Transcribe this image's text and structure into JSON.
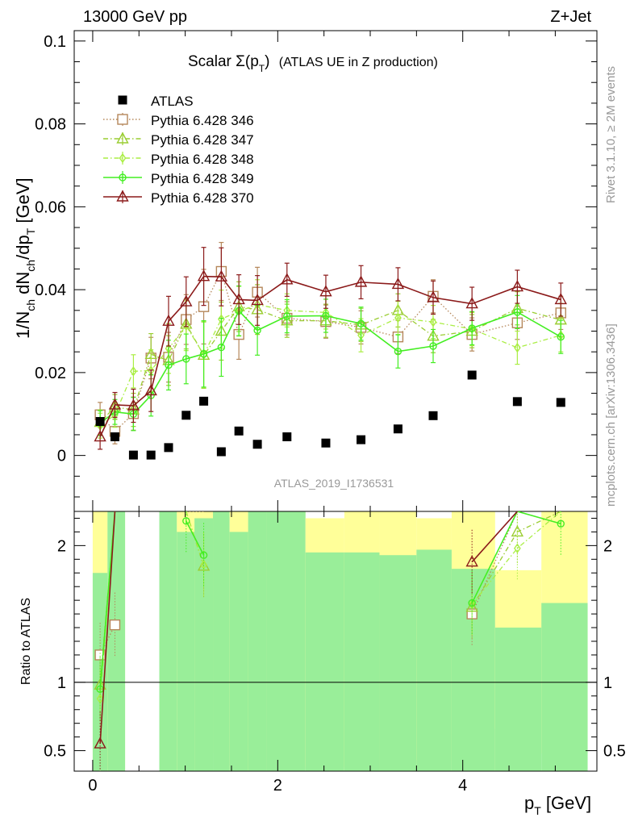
{
  "header": {
    "left": "13000 GeV pp",
    "right": "Z+Jet"
  },
  "side_labels": {
    "top": "Rivet 3.1.10, ≥ 2M events",
    "bottom": "mcplots.cern.ch [arXiv:1306.3436]"
  },
  "analysis_label": "ATLAS_2019_I1736531",
  "title": {
    "main": "Scalar Σ(p",
    "sub": "T",
    "close": ")",
    "suffix": "(ATLAS UE in Z production)"
  },
  "colors": {
    "data": "#000000",
    "p346": "#b5875a",
    "p347": "#9acd32",
    "p348": "#aaee44",
    "p349": "#44ee22",
    "p370": "#8b1a1a",
    "band_inner": "#99ee99",
    "band_outer": "#ffff99"
  },
  "chart_data": [
    {
      "type": "scatter",
      "panel": "main",
      "xlim": [
        -0.2,
        5.45
      ],
      "ylim": [
        -0.0135,
        0.1025
      ],
      "ylabel": "1/N_ch dN_ch/dp_T [GeV]",
      "y_ticks": [
        0,
        0.02,
        0.04,
        0.06,
        0.08,
        0.1
      ],
      "y_tick_labels": [
        "0",
        "0.02",
        "0.04",
        "0.06",
        "0.08",
        "0.1"
      ],
      "legend_position": "top-left",
      "series": [
        {
          "name": "ATLAS",
          "key": "data",
          "marker": "square-filled",
          "x": [
            0.08,
            0.24,
            0.44,
            0.63,
            0.82,
            1.01,
            1.2,
            1.39,
            1.58,
            1.78,
            2.1,
            2.52,
            2.9,
            3.3,
            3.68,
            4.1,
            4.59,
            5.06
          ],
          "y": [
            0.0082,
            0.0045,
            0.0001,
            0.0001,
            0.0019,
            0.0097,
            0.0131,
            0.0009,
            0.0059,
            0.0027,
            0.0045,
            0.003,
            0.0038,
            0.0064,
            0.0096,
            0.0194,
            0.013,
            0.0128
          ]
        },
        {
          "name": "Pythia 6.428 346",
          "key": "p346",
          "marker": "square-open",
          "line": "dotted",
          "x": [
            0.08,
            0.24,
            0.44,
            0.63,
            0.82,
            1.01,
            1.2,
            1.39,
            1.58,
            1.78,
            2.1,
            2.52,
            2.9,
            3.3,
            3.68,
            4.1,
            4.59,
            5.06
          ],
          "y": [
            0.0098,
            0.0058,
            0.0101,
            0.0235,
            0.0237,
            0.0328,
            0.0359,
            0.0444,
            0.0292,
            0.0394,
            0.0331,
            0.0323,
            0.0309,
            0.0286,
            0.0384,
            0.0292,
            0.032,
            0.0344
          ],
          "err": [
            0.003,
            0.003,
            0.004,
            0.005,
            0.006,
            0.006,
            0.009,
            0.007,
            0.006,
            0.006,
            0.004,
            0.004,
            0.004,
            0.004,
            0.004,
            0.004,
            0.004,
            0.004
          ]
        },
        {
          "name": "Pythia 6.428 347",
          "key": "p347",
          "marker": "triangle-open",
          "line": "dashdot",
          "x": [
            0.08,
            0.24,
            0.44,
            0.63,
            0.82,
            1.01,
            1.2,
            1.39,
            1.58,
            1.78,
            2.1,
            2.52,
            2.9,
            3.3,
            3.68,
            4.1,
            4.59,
            5.06
          ],
          "y": [
            0.008,
            0.0117,
            0.011,
            0.0244,
            0.0229,
            0.0317,
            0.0242,
            0.03,
            0.0359,
            0.0352,
            0.0325,
            0.0325,
            0.0315,
            0.035,
            0.0288,
            0.03,
            0.0355,
            0.0327
          ],
          "err": [
            0.003,
            0.003,
            0.004,
            0.005,
            0.006,
            0.006,
            0.008,
            0.007,
            0.006,
            0.006,
            0.004,
            0.004,
            0.004,
            0.004,
            0.004,
            0.004,
            0.004,
            0.004
          ]
        },
        {
          "name": "Pythia 6.428 348",
          "key": "p348",
          "marker": "diamond-open",
          "line": "dashdot",
          "x": [
            0.08,
            0.24,
            0.44,
            0.63,
            0.82,
            1.01,
            1.2,
            1.39,
            1.58,
            1.78,
            2.1,
            2.52,
            2.9,
            3.3,
            3.68,
            4.1,
            4.59,
            5.06
          ],
          "y": [
            0.0072,
            0.0098,
            0.0203,
            0.0205,
            0.0258,
            0.0313,
            0.0243,
            0.0329,
            0.0348,
            0.0364,
            0.035,
            0.0345,
            0.029,
            0.0332,
            0.0322,
            0.0305,
            0.026,
            0.029
          ],
          "err": [
            0.003,
            0.003,
            0.004,
            0.005,
            0.006,
            0.006,
            0.008,
            0.007,
            0.006,
            0.006,
            0.004,
            0.004,
            0.004,
            0.004,
            0.004,
            0.004,
            0.004,
            0.004
          ]
        },
        {
          "name": "Pythia 6.428 349",
          "key": "p349",
          "marker": "circle-cross",
          "line": "solid",
          "x": [
            0.08,
            0.24,
            0.44,
            0.63,
            0.82,
            1.01,
            1.2,
            1.39,
            1.58,
            1.78,
            2.1,
            2.52,
            2.9,
            3.3,
            3.68,
            4.1,
            4.59,
            5.06
          ],
          "y": [
            0.0078,
            0.0105,
            0.01,
            0.0145,
            0.0218,
            0.0233,
            0.0245,
            0.0261,
            0.0349,
            0.0302,
            0.0336,
            0.0337,
            0.0318,
            0.0251,
            0.0264,
            0.0307,
            0.0346,
            0.0286
          ],
          "err": [
            0.003,
            0.003,
            0.004,
            0.005,
            0.006,
            0.006,
            0.008,
            0.007,
            0.006,
            0.006,
            0.004,
            0.004,
            0.004,
            0.004,
            0.004,
            0.004,
            0.004,
            0.004
          ]
        },
        {
          "name": "Pythia 6.428 370",
          "key": "p370",
          "marker": "triangle-open",
          "line": "solid",
          "x": [
            0.08,
            0.24,
            0.44,
            0.63,
            0.82,
            1.01,
            1.2,
            1.39,
            1.58,
            1.78,
            2.1,
            2.52,
            2.9,
            3.3,
            3.68,
            4.1,
            4.59,
            5.06
          ],
          "y": [
            0.0045,
            0.0122,
            0.012,
            0.0156,
            0.0324,
            0.0371,
            0.0432,
            0.0431,
            0.0376,
            0.0374,
            0.0424,
            0.0395,
            0.0418,
            0.0413,
            0.0381,
            0.0366,
            0.0407,
            0.0376
          ],
          "err": [
            0.003,
            0.003,
            0.004,
            0.005,
            0.006,
            0.006,
            0.007,
            0.007,
            0.006,
            0.006,
            0.004,
            0.004,
            0.004,
            0.004,
            0.004,
            0.004,
            0.004,
            0.004
          ]
        }
      ]
    },
    {
      "type": "line",
      "panel": "ratio",
      "xlim": [
        -0.2,
        5.45
      ],
      "ylim": [
        0.35,
        2.25
      ],
      "xlabel": "p_T [GeV]",
      "ylabel": "Ratio to ATLAS",
      "x_ticks": [
        0,
        2,
        4
      ],
      "x_tick_labels": [
        "0",
        "2",
        "4"
      ],
      "y_ticks": [
        0.5,
        1,
        2
      ],
      "y_tick_labels": [
        "0.5",
        "1",
        "2"
      ],
      "reference_line": 1,
      "uncertainty_bands": {
        "edges": [
          0.0,
          0.16,
          0.35,
          0.72,
          0.91,
          1.1,
          1.3,
          1.48,
          1.68,
          1.88,
          2.3,
          2.72,
          3.1,
          3.5,
          3.88,
          4.35,
          4.85,
          5.35
        ],
        "outer_low": [
          0.35,
          0.35,
          0.35,
          0.35,
          0.35,
          0.35,
          0.48,
          0.35,
          0.35,
          0.35,
          0.38,
          0.35,
          0.35,
          0.43,
          0.35,
          0.66,
          0.48,
          0.66
        ],
        "outer_high": [
          2.25,
          2.25,
          2.25,
          2.25,
          2.25,
          2.25,
          2.25,
          2.25,
          2.25,
          2.25,
          2.2,
          2.25,
          2.25,
          2.2,
          2.25,
          1.82,
          2.25,
          1.82
        ],
        "inner_low": [
          0.35,
          0.35,
          0.35,
          0.35,
          0.35,
          0.35,
          0.35,
          0.35,
          0.35,
          0.35,
          0.35,
          0.35,
          0.35,
          0.35,
          0.35,
          0.35,
          0.35,
          0.35
        ],
        "inner_high": [
          1.8,
          2.25,
          2.25,
          2.25,
          2.1,
          2.2,
          2.25,
          2.1,
          2.25,
          2.25,
          1.95,
          1.95,
          1.93,
          1.97,
          1.83,
          1.4,
          1.58,
          1.43
        ],
        "visible": [
          true,
          true,
          false,
          true,
          true,
          true,
          true,
          true,
          true,
          true,
          true,
          true,
          true,
          true,
          true,
          true,
          true,
          true
        ]
      },
      "series": [
        {
          "name": "Pythia 6.428 346",
          "key": "p346",
          "x": [
            0.08,
            0.24,
            1.01,
            1.2,
            4.1,
            4.59
          ],
          "y": [
            1.2,
            1.42,
            2.25,
            2.25,
            1.5,
            2.25
          ]
        },
        {
          "name": "Pythia 6.428 347",
          "key": "p347",
          "x": [
            0.08,
            0.24,
            1.01,
            1.2,
            4.1,
            4.59,
            5.06
          ],
          "y": [
            0.98,
            2.25,
            2.25,
            1.85,
            1.55,
            2.1,
            2.25
          ]
        },
        {
          "name": "Pythia 6.428 348",
          "key": "p348",
          "x": [
            0.08,
            0.24,
            1.01,
            1.2,
            4.1,
            4.59,
            5.06
          ],
          "y": [
            0.88,
            2.25,
            2.25,
            1.86,
            1.57,
            1.98,
            2.25
          ]
        },
        {
          "name": "Pythia 6.428 349",
          "key": "p349",
          "x": [
            0.08,
            0.24,
            1.01,
            1.2,
            4.1,
            4.59,
            5.06
          ],
          "y": [
            0.95,
            2.25,
            2.18,
            1.93,
            1.58,
            2.25,
            2.16
          ]
        },
        {
          "name": "Pythia 6.428 370",
          "key": "p370",
          "x": [
            0.08,
            0.24,
            4.1,
            4.59
          ],
          "y": [
            0.55,
            2.25,
            1.88,
            2.25
          ]
        }
      ]
    }
  ]
}
